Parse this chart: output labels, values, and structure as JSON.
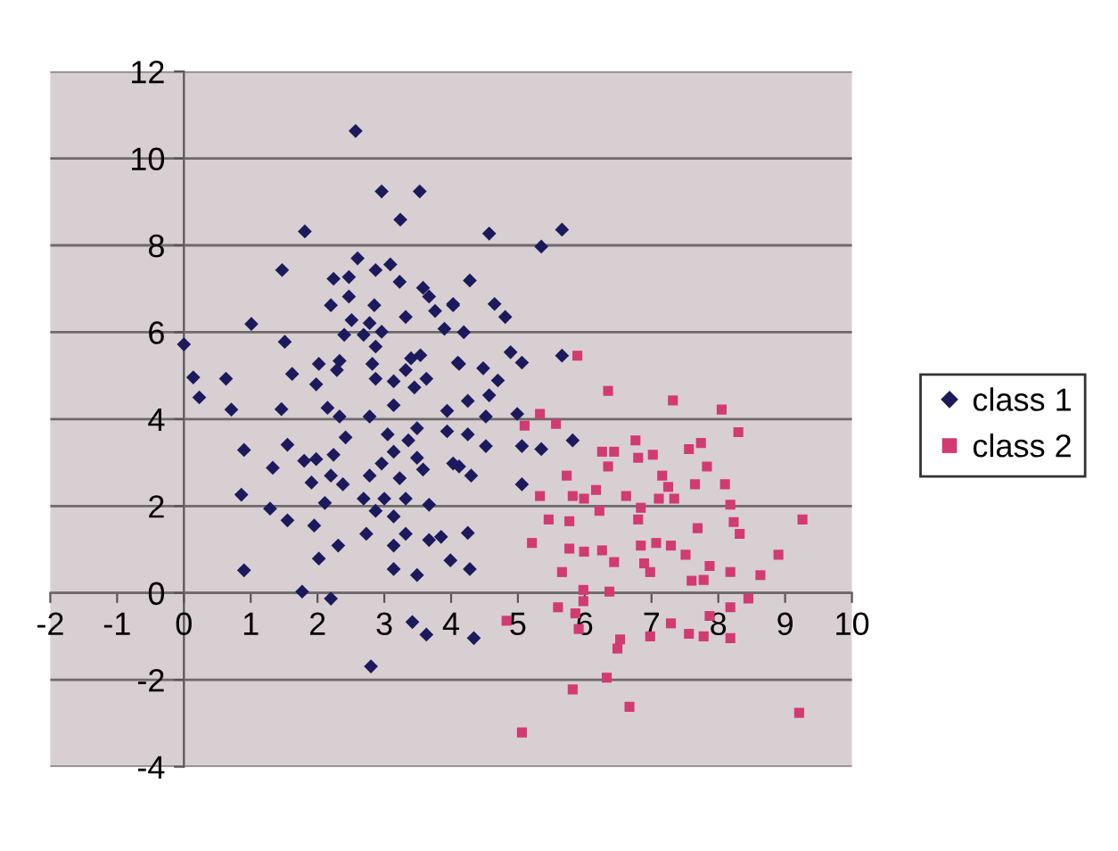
{
  "chart_data": {
    "type": "scatter",
    "xlim": [
      -2,
      10
    ],
    "ylim": [
      -4,
      12
    ],
    "xticks": [
      -2,
      -1,
      0,
      1,
      2,
      3,
      4,
      5,
      6,
      7,
      8,
      9,
      10
    ],
    "yticks": [
      -4,
      -2,
      0,
      2,
      4,
      6,
      8,
      10,
      12
    ],
    "grid": "y",
    "legend": "right",
    "series": [
      {
        "name": "class 1",
        "color": "#1c1a5c",
        "marker": "diamond",
        "x": [
          2.57,
          2.96,
          3.53,
          3.24,
          1.81,
          1.47,
          2.6,
          1.01,
          0.0,
          1.51,
          0.14,
          0.23,
          0.63,
          1.62,
          4.57,
          5.66,
          5.35,
          4.28,
          4.03,
          4.65,
          4.81,
          4.19,
          4.89,
          5.06,
          5.66,
          4.1,
          4.48,
          4.7,
          4.57,
          4.25,
          0.71,
          1.46,
          0.9,
          1.55,
          1.33,
          0.86,
          1.29,
          1.55,
          1.95,
          2.11,
          1.91,
          2.31,
          2.02,
          0.9,
          1.77,
          2.2,
          3.42,
          3.63,
          2.8,
          2.15,
          2.33,
          1.8,
          1.98,
          2.24,
          2.42,
          2.2,
          2.38,
          2.69,
          2.73,
          3.14,
          3.49,
          3.99,
          3.14,
          3.32,
          3.67,
          3.85,
          2.87,
          3.14,
          3.32,
          3.67,
          2.78,
          3.14,
          3.49,
          2.78,
          3.14,
          3.49,
          4.03,
          3.94,
          4.12,
          4.52,
          4.99,
          5.06,
          5.35,
          5.82,
          5.06,
          3.94,
          4.25,
          4.52,
          4.12,
          4.3,
          4.25,
          4.28,
          4.34,
          2.24,
          2.47,
          2.87,
          3.09,
          3.23,
          3.58,
          3.67,
          4.03,
          2.2,
          2.47,
          2.85,
          3.32,
          3.76,
          2.51,
          2.78,
          2.4,
          2.69,
          2.96,
          3.9,
          2.87,
          3.4,
          3.54,
          2.02,
          2.33,
          2.82,
          3.32,
          3.63,
          2.29,
          2.87,
          3.14,
          3.45,
          1.98,
          3.05,
          3.36,
          2.96,
          3.23,
          3.58,
          3.0
        ],
        "values": [
          10.63,
          9.24,
          9.24,
          8.59,
          8.32,
          7.43,
          7.7,
          6.19,
          5.72,
          5.78,
          4.96,
          4.5,
          4.93,
          5.04,
          8.27,
          8.36,
          7.97,
          7.19,
          6.65,
          6.65,
          6.35,
          6.0,
          5.54,
          5.3,
          5.46,
          5.3,
          5.17,
          4.89,
          4.55,
          4.42,
          4.22,
          4.23,
          3.29,
          3.41,
          2.88,
          2.26,
          1.94,
          1.67,
          1.55,
          2.07,
          2.54,
          1.09,
          0.79,
          0.52,
          0.03,
          -0.13,
          -0.67,
          -0.96,
          -1.69,
          4.26,
          4.06,
          3.04,
          3.08,
          3.18,
          3.58,
          2.7,
          2.5,
          2.17,
          1.36,
          0.55,
          0.41,
          0.75,
          1.09,
          1.36,
          1.22,
          1.29,
          1.89,
          1.76,
          2.17,
          2.03,
          2.7,
          3.25,
          3.11,
          4.06,
          4.32,
          3.79,
          2.98,
          4.19,
          5.27,
          4.06,
          4.12,
          3.38,
          3.31,
          3.51,
          2.5,
          3.72,
          3.65,
          3.38,
          2.91,
          2.7,
          1.38,
          0.55,
          -1.04,
          7.23,
          7.27,
          7.43,
          7.56,
          7.16,
          7.02,
          6.82,
          6.62,
          6.62,
          6.82,
          6.62,
          6.35,
          6.49,
          6.28,
          6.21,
          5.94,
          5.94,
          6.01,
          6.08,
          5.67,
          5.4,
          5.47,
          5.27,
          5.34,
          5.27,
          5.13,
          4.93,
          5.13,
          4.93,
          4.87,
          4.73,
          4.8,
          3.65,
          3.51,
          2.98,
          2.64,
          2.84,
          2.17
        ]
      },
      {
        "name": "class 2",
        "color": "#d23a72",
        "marker": "square",
        "x": [
          5.89,
          6.35,
          7.32,
          8.05,
          8.3,
          5.1,
          5.33,
          5.57,
          6.26,
          6.44,
          6.35,
          6.76,
          6.8,
          7.02,
          7.56,
          7.74,
          7.83,
          7.65,
          7.16,
          7.25,
          5.73,
          5.82,
          5.33,
          5.46,
          5.99,
          6.17,
          6.22,
          5.77,
          6.62,
          6.84,
          6.8,
          7.11,
          7.34,
          8.1,
          8.18,
          8.23,
          8.32,
          7.69,
          9.26,
          5.21,
          5.77,
          5.99,
          6.26,
          6.44,
          6.84,
          7.07,
          7.29,
          6.89,
          6.98,
          7.51,
          7.87,
          8.18,
          8.9,
          8.63,
          7.6,
          7.78,
          5.66,
          6.37,
          5.98,
          5.98,
          5.6,
          5.86,
          5.91,
          4.83,
          8.45,
          8.18,
          7.87,
          7.29,
          7.56,
          7.78,
          8.18,
          6.98,
          6.53,
          6.49,
          6.33,
          5.82,
          6.67,
          9.21,
          5.06
        ],
        "values": [
          5.46,
          4.65,
          4.43,
          4.22,
          3.7,
          3.85,
          4.12,
          3.89,
          3.25,
          3.25,
          2.91,
          3.51,
          3.11,
          3.18,
          3.31,
          3.45,
          2.91,
          2.5,
          2.7,
          2.44,
          2.7,
          2.23,
          2.23,
          1.69,
          2.17,
          2.37,
          1.89,
          1.65,
          2.23,
          1.96,
          1.69,
          2.17,
          2.17,
          2.5,
          2.03,
          1.63,
          1.36,
          1.49,
          1.69,
          1.15,
          1.02,
          0.95,
          0.98,
          0.71,
          1.09,
          1.15,
          1.09,
          0.68,
          0.48,
          0.88,
          0.62,
          0.48,
          0.88,
          0.41,
          0.28,
          0.3,
          0.48,
          0.03,
          0.07,
          -0.19,
          -0.33,
          -0.47,
          -0.83,
          -0.64,
          -0.13,
          -0.33,
          -0.53,
          -0.7,
          -0.94,
          -1.0,
          -1.04,
          -1.0,
          -1.07,
          -1.28,
          -1.95,
          -2.22,
          -2.62,
          -2.76,
          -3.21
        ]
      }
    ]
  }
}
